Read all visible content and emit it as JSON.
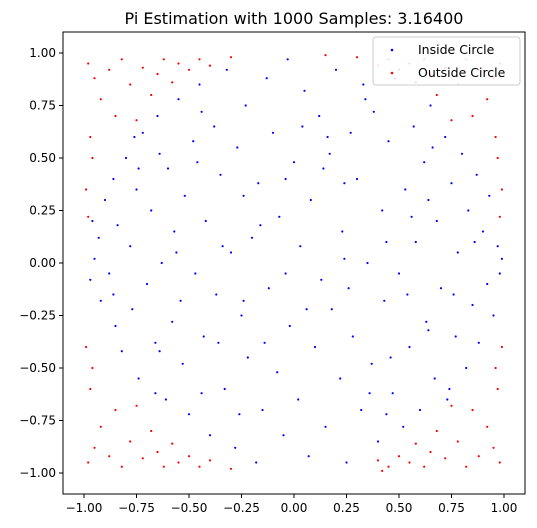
{
  "chart_data": {
    "type": "scatter",
    "title": "Pi Estimation with 1000 Samples: 3.16400",
    "xlabel": "",
    "ylabel": "",
    "xlim": [
      -1.1,
      1.1
    ],
    "ylim": [
      -1.1,
      1.1
    ],
    "xticks": [
      -1.0,
      -0.75,
      -0.5,
      -0.25,
      0.0,
      0.25,
      0.5,
      0.75,
      1.0
    ],
    "xtick_labels": [
      "−1.00",
      "−0.75",
      "−0.50",
      "−0.25",
      "0.00",
      "0.25",
      "0.50",
      "0.75",
      "1.00"
    ],
    "yticks": [
      1.0,
      0.75,
      0.5,
      0.25,
      0.0,
      -0.25,
      -0.5,
      -0.75,
      -1.0
    ],
    "ytick_labels": [
      "1.00",
      "0.75",
      "0.50",
      "0.25",
      "0.00",
      "−0.25",
      "−0.50",
      "−0.75",
      "−1.00"
    ],
    "grid": false,
    "legend_position": "top-right",
    "series": [
      {
        "name": "Inside Circle",
        "color": "#0000ff",
        "points": [
          [
            -0.95,
            0.02
          ],
          [
            -0.93,
            0.12
          ],
          [
            -0.92,
            -0.18
          ],
          [
            -0.9,
            0.3
          ],
          [
            -0.88,
            -0.05
          ],
          [
            -0.86,
            0.4
          ],
          [
            -0.85,
            -0.3
          ],
          [
            -0.84,
            0.18
          ],
          [
            -0.82,
            -0.42
          ],
          [
            -0.8,
            0.5
          ],
          [
            -0.78,
            0.08
          ],
          [
            -0.77,
            -0.22
          ],
          [
            -0.75,
            0.35
          ],
          [
            -0.74,
            -0.55
          ],
          [
            -0.72,
            0.62
          ],
          [
            -0.7,
            -0.1
          ],
          [
            -0.68,
            0.25
          ],
          [
            -0.66,
            -0.38
          ],
          [
            -0.65,
            0.7
          ],
          [
            -0.63,
            0.0
          ],
          [
            -0.61,
            -0.65
          ],
          [
            -0.6,
            0.45
          ],
          [
            -0.58,
            -0.28
          ],
          [
            -0.57,
            0.15
          ],
          [
            -0.55,
            0.78
          ],
          [
            -0.53,
            -0.48
          ],
          [
            -0.52,
            0.32
          ],
          [
            -0.5,
            -0.72
          ],
          [
            -0.48,
            0.58
          ],
          [
            -0.47,
            -0.05
          ],
          [
            -0.45,
            0.85
          ],
          [
            -0.43,
            -0.35
          ],
          [
            -0.42,
            0.2
          ],
          [
            -0.4,
            -0.82
          ],
          [
            -0.38,
            0.65
          ],
          [
            -0.37,
            -0.15
          ],
          [
            -0.35,
            0.42
          ],
          [
            -0.33,
            -0.6
          ],
          [
            -0.32,
            0.92
          ],
          [
            -0.3,
            0.05
          ],
          [
            -0.28,
            -0.88
          ],
          [
            -0.27,
            0.55
          ],
          [
            -0.25,
            -0.25
          ],
          [
            -0.23,
            0.75
          ],
          [
            -0.22,
            -0.45
          ],
          [
            -0.2,
            0.12
          ],
          [
            -0.18,
            -0.95
          ],
          [
            -0.17,
            0.38
          ],
          [
            -0.15,
            -0.7
          ],
          [
            -0.13,
            0.88
          ],
          [
            -0.12,
            -0.12
          ],
          [
            -0.1,
            0.62
          ],
          [
            -0.08,
            -0.52
          ],
          [
            -0.07,
            0.22
          ],
          [
            -0.05,
            -0.82
          ],
          [
            -0.03,
            0.97
          ],
          [
            -0.02,
            -0.3
          ],
          [
            0.0,
            0.48
          ],
          [
            0.02,
            -0.65
          ],
          [
            0.03,
            0.08
          ],
          [
            0.05,
            0.82
          ],
          [
            0.07,
            -0.92
          ],
          [
            0.08,
            0.3
          ],
          [
            0.1,
            -0.4
          ],
          [
            0.12,
            0.7
          ],
          [
            0.13,
            -0.08
          ],
          [
            0.15,
            -0.78
          ],
          [
            0.17,
            0.52
          ],
          [
            0.18,
            -0.22
          ],
          [
            0.2,
            0.92
          ],
          [
            0.22,
            -0.55
          ],
          [
            0.23,
            0.15
          ],
          [
            0.25,
            -0.95
          ],
          [
            0.27,
            0.62
          ],
          [
            0.28,
            -0.35
          ],
          [
            0.3,
            0.4
          ],
          [
            0.32,
            -0.7
          ],
          [
            0.33,
            0.85
          ],
          [
            0.35,
            0.0
          ],
          [
            0.37,
            -0.48
          ],
          [
            0.38,
            0.72
          ],
          [
            0.4,
            -0.85
          ],
          [
            0.42,
            0.25
          ],
          [
            0.43,
            -0.18
          ],
          [
            0.45,
            0.58
          ],
          [
            0.47,
            -0.62
          ],
          [
            0.48,
            0.88
          ],
          [
            0.5,
            -0.05
          ],
          [
            0.52,
            -0.78
          ],
          [
            0.53,
            0.35
          ],
          [
            0.55,
            -0.4
          ],
          [
            0.57,
            0.65
          ],
          [
            0.58,
            0.1
          ],
          [
            0.6,
            -0.7
          ],
          [
            0.62,
            0.48
          ],
          [
            0.63,
            -0.28
          ],
          [
            0.65,
            0.75
          ],
          [
            0.67,
            -0.55
          ],
          [
            0.68,
            0.2
          ],
          [
            0.7,
            -0.12
          ],
          [
            0.72,
            0.6
          ],
          [
            0.73,
            -0.65
          ],
          [
            0.75,
            0.38
          ],
          [
            0.77,
            -0.35
          ],
          [
            0.78,
            0.05
          ],
          [
            0.8,
            0.52
          ],
          [
            0.82,
            -0.5
          ],
          [
            0.83,
            0.25
          ],
          [
            0.85,
            -0.2
          ],
          [
            0.87,
            0.42
          ],
          [
            0.88,
            -0.38
          ],
          [
            0.9,
            0.15
          ],
          [
            0.92,
            -0.1
          ],
          [
            0.93,
            0.32
          ],
          [
            0.95,
            -0.25
          ],
          [
            0.97,
            0.08
          ],
          [
            0.98,
            -0.05
          ],
          [
            0.99,
            0.02
          ],
          [
            -0.97,
            -0.08
          ],
          [
            -0.96,
            0.2
          ],
          [
            -0.64,
            0.52
          ],
          [
            -0.44,
            -0.62
          ],
          [
            -0.24,
            0.32
          ],
          [
            -0.04,
            0.4
          ],
          [
            0.16,
            0.6
          ],
          [
            0.36,
            -0.62
          ],
          [
            0.56,
            0.22
          ],
          [
            0.76,
            -0.15
          ],
          [
            -0.56,
            0.05
          ],
          [
            0.44,
            0.1
          ],
          [
            -0.36,
            -0.38
          ],
          [
            0.26,
            -0.12
          ],
          [
            -0.16,
            0.18
          ],
          [
            0.06,
            -0.22
          ],
          [
            -0.46,
            0.48
          ],
          [
            0.46,
            -0.45
          ],
          [
            -0.26,
            -0.72
          ],
          [
            0.34,
            0.78
          ],
          [
            -0.66,
            -0.62
          ],
          [
            0.66,
            0.55
          ],
          [
            -0.76,
            0.6
          ],
          [
            0.74,
            -0.6
          ],
          [
            -0.86,
            -0.15
          ],
          [
            0.86,
            0.1
          ],
          [
            -0.14,
            -0.38
          ],
          [
            0.14,
            0.45
          ],
          [
            -0.34,
            0.08
          ],
          [
            0.24,
            0.02
          ],
          [
            -0.54,
            -0.18
          ],
          [
            0.54,
            -0.15
          ],
          [
            -0.74,
            0.45
          ],
          [
            0.64,
            0.3
          ],
          [
            -0.04,
            -0.05
          ],
          [
            0.04,
            0.65
          ],
          [
            -0.44,
            0.72
          ],
          [
            0.44,
            -0.72
          ],
          [
            -0.24,
            -0.18
          ],
          [
            0.24,
            0.38
          ],
          [
            -0.64,
            -0.42
          ],
          [
            0.64,
            -0.32
          ]
        ]
      },
      {
        "name": "Outside Circle",
        "color": "#ff0000",
        "points": [
          [
            -0.98,
            0.95
          ],
          [
            -0.95,
            0.88
          ],
          [
            -0.92,
            0.78
          ],
          [
            -0.88,
            0.92
          ],
          [
            -0.85,
            0.7
          ],
          [
            -0.82,
            0.97
          ],
          [
            -0.78,
            0.85
          ],
          [
            -0.75,
            0.68
          ],
          [
            -0.72,
            0.93
          ],
          [
            -0.68,
            0.8
          ],
          [
            -0.65,
            0.9
          ],
          [
            -0.62,
            0.97
          ],
          [
            -0.58,
            0.86
          ],
          [
            -0.55,
            0.95
          ],
          [
            -0.5,
            0.92
          ],
          [
            -0.45,
            0.97
          ],
          [
            -0.4,
            0.94
          ],
          [
            -0.97,
            0.6
          ],
          [
            -0.96,
            0.5
          ],
          [
            -0.99,
            0.35
          ],
          [
            -0.98,
            0.22
          ],
          [
            0.97,
            0.5
          ],
          [
            0.99,
            0.35
          ],
          [
            0.98,
            0.22
          ],
          [
            0.96,
            0.6
          ],
          [
            -0.98,
            -0.95
          ],
          [
            -0.95,
            -0.88
          ],
          [
            -0.92,
            -0.78
          ],
          [
            -0.88,
            -0.92
          ],
          [
            -0.85,
            -0.7
          ],
          [
            -0.82,
            -0.97
          ],
          [
            -0.78,
            -0.85
          ],
          [
            -0.75,
            -0.68
          ],
          [
            -0.72,
            -0.93
          ],
          [
            -0.68,
            -0.8
          ],
          [
            -0.65,
            -0.9
          ],
          [
            -0.62,
            -0.97
          ],
          [
            -0.58,
            -0.86
          ],
          [
            -0.55,
            -0.95
          ],
          [
            -0.5,
            -0.92
          ],
          [
            -0.45,
            -0.97
          ],
          [
            -0.4,
            -0.94
          ],
          [
            -0.97,
            -0.6
          ],
          [
            -0.96,
            -0.5
          ],
          [
            -0.99,
            -0.4
          ],
          [
            0.98,
            0.95
          ],
          [
            0.95,
            0.88
          ],
          [
            0.92,
            0.78
          ],
          [
            0.88,
            0.92
          ],
          [
            0.85,
            0.7
          ],
          [
            0.82,
            0.97
          ],
          [
            0.78,
            0.85
          ],
          [
            0.75,
            0.68
          ],
          [
            0.72,
            0.93
          ],
          [
            0.68,
            0.8
          ],
          [
            0.65,
            0.9
          ],
          [
            0.62,
            0.97
          ],
          [
            0.58,
            0.86
          ],
          [
            0.55,
            0.95
          ],
          [
            0.5,
            0.92
          ],
          [
            0.45,
            0.97
          ],
          [
            0.4,
            0.94
          ],
          [
            0.98,
            -0.95
          ],
          [
            0.95,
            -0.88
          ],
          [
            0.92,
            -0.78
          ],
          [
            0.88,
            -0.92
          ],
          [
            0.85,
            -0.7
          ],
          [
            0.82,
            -0.97
          ],
          [
            0.78,
            -0.85
          ],
          [
            0.75,
            -0.68
          ],
          [
            0.72,
            -0.93
          ],
          [
            0.68,
            -0.8
          ],
          [
            0.65,
            -0.9
          ],
          [
            0.62,
            -0.97
          ],
          [
            0.58,
            -0.86
          ],
          [
            0.55,
            -0.95
          ],
          [
            0.5,
            -0.92
          ],
          [
            0.45,
            -0.97
          ],
          [
            0.4,
            -0.94
          ],
          [
            0.97,
            -0.6
          ],
          [
            0.96,
            -0.5
          ],
          [
            0.99,
            -0.4
          ],
          [
            -0.3,
            0.98
          ],
          [
            0.15,
            0.99
          ],
          [
            0.3,
            0.98
          ],
          [
            -0.3,
            -0.98
          ],
          [
            0.42,
            -0.99
          ]
        ]
      }
    ]
  }
}
